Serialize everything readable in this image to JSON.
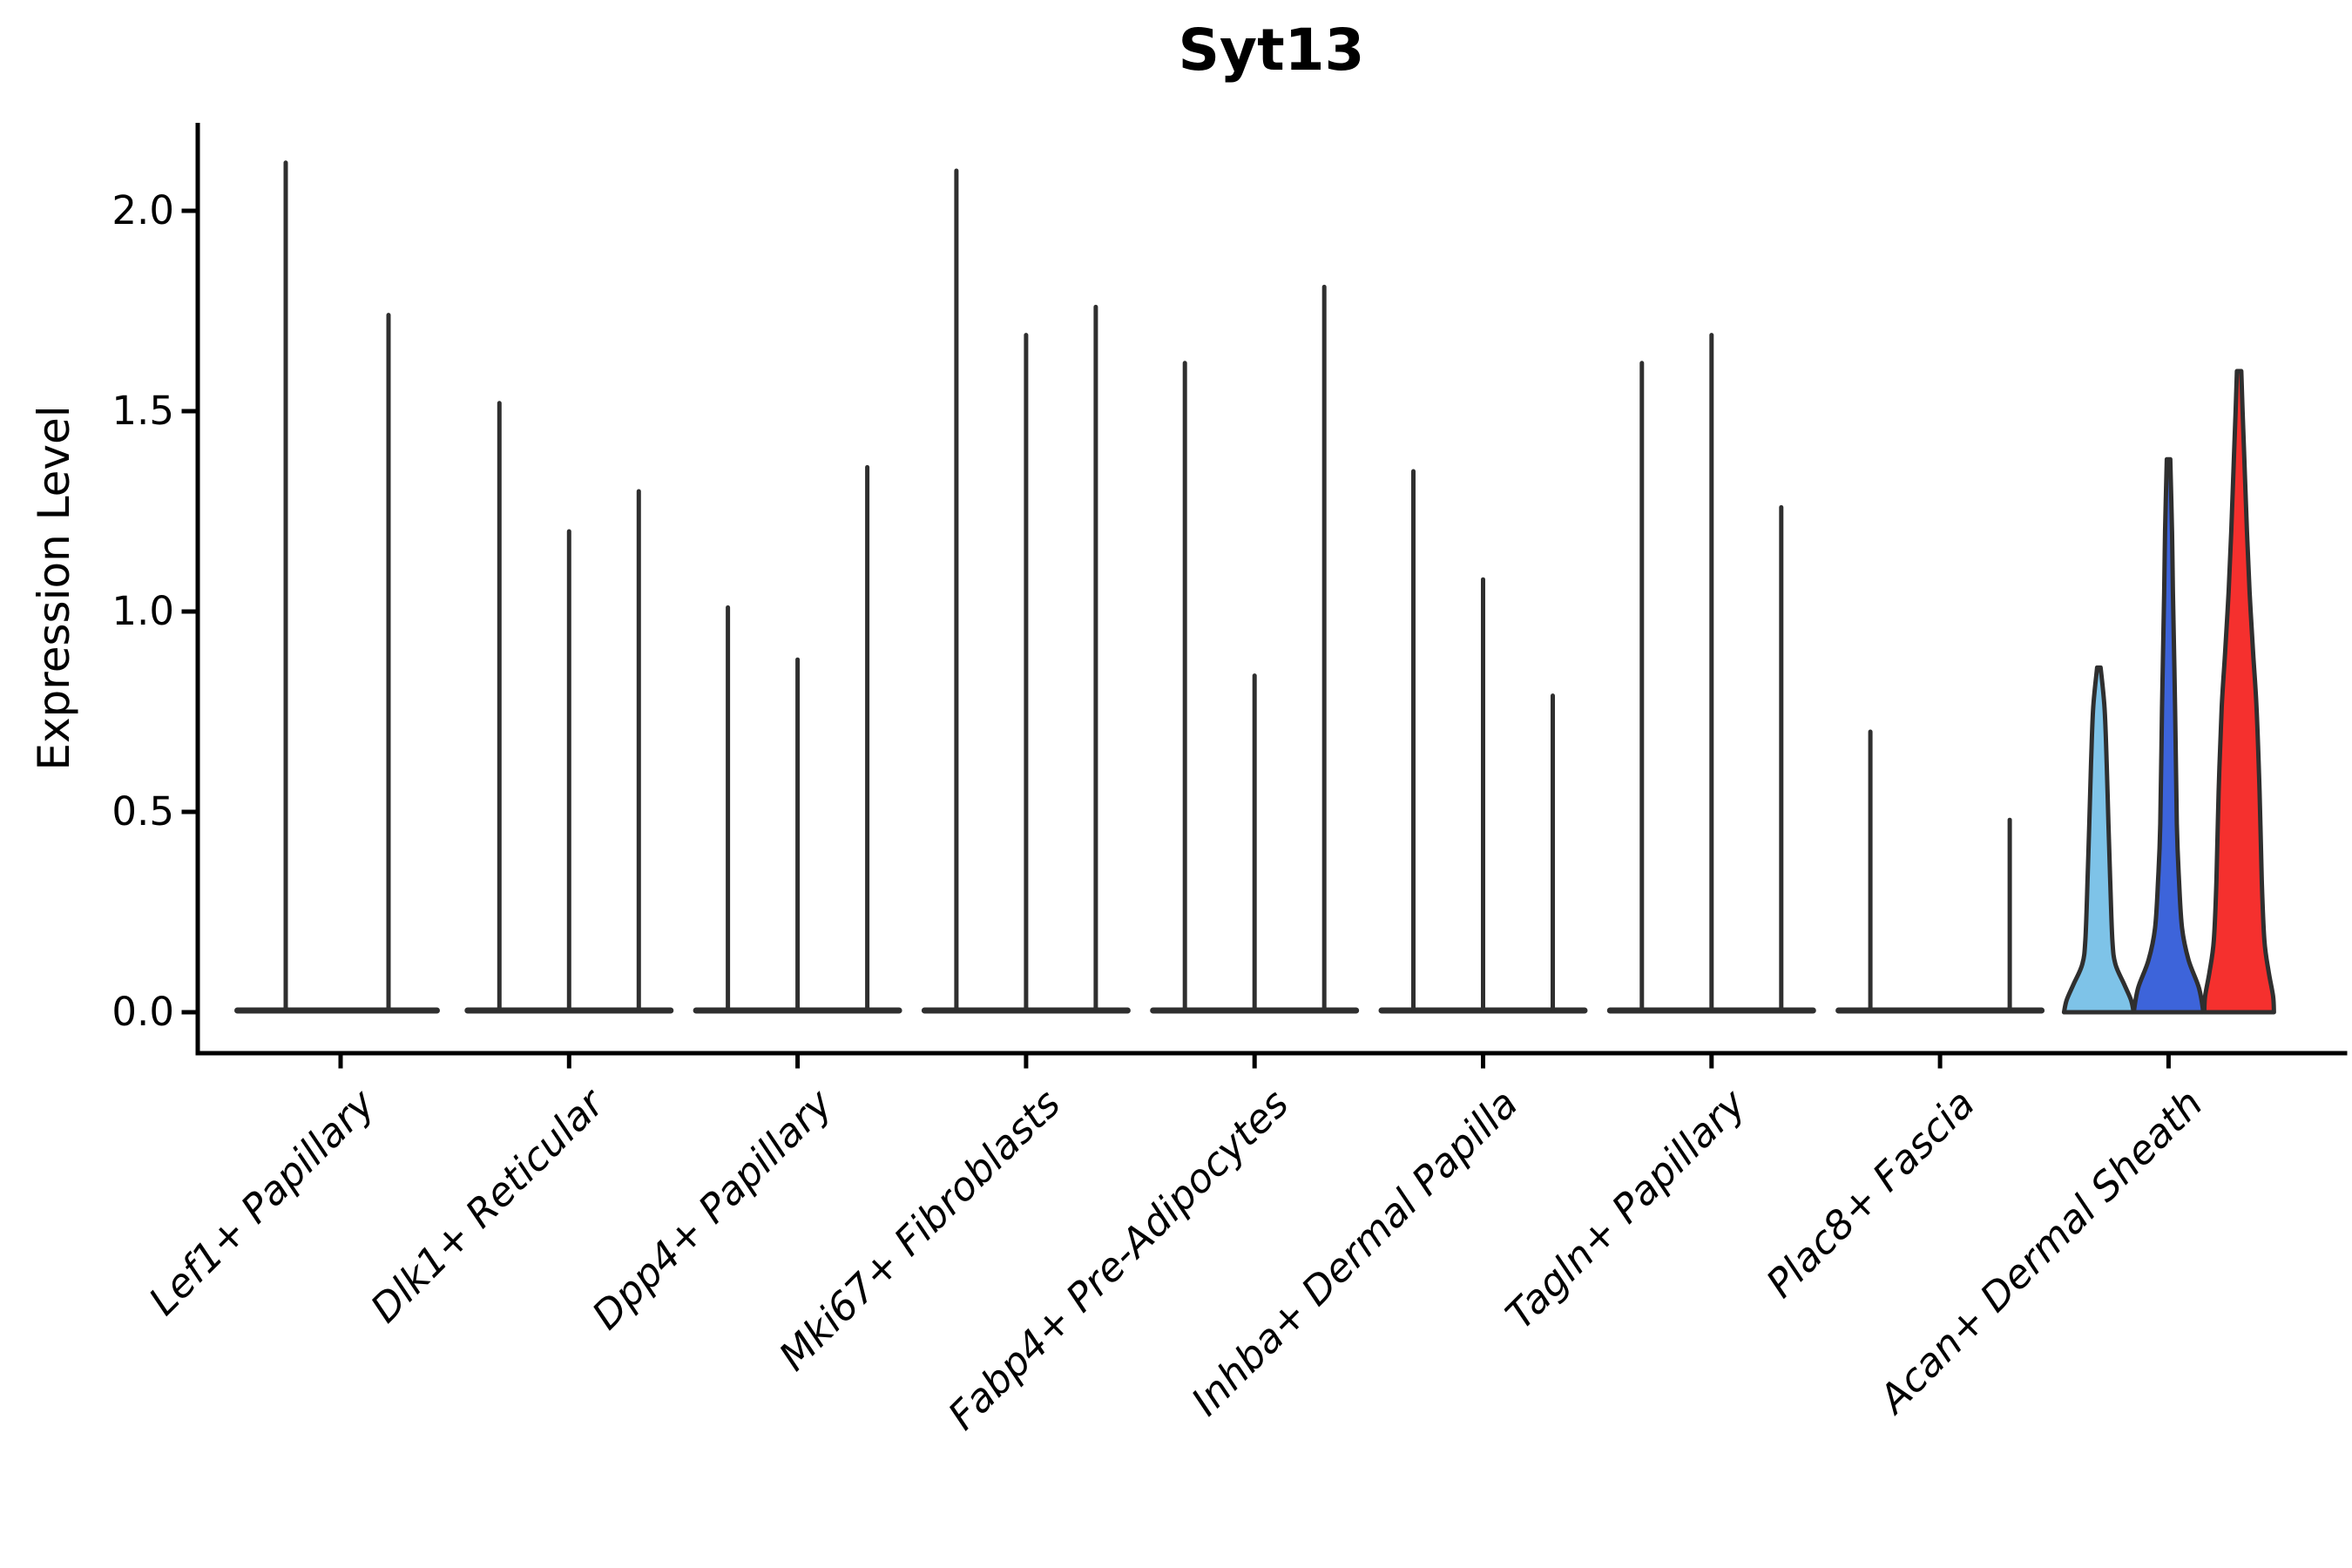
{
  "chart_data": {
    "type": "violin",
    "title": "Syt13",
    "ylabel": "Expression Level",
    "xlabel": "",
    "grid": false,
    "legend": "none",
    "ylim": [
      -0.09,
      2.22
    ],
    "ytick_values": [
      0.0,
      0.5,
      1.0,
      1.5,
      2.0
    ],
    "ytick_labels": [
      "0.0",
      "0.5",
      "1.0",
      "1.5",
      "2.0"
    ],
    "colors": {
      "violin_edge": "#2f2f2f",
      "axis": "#000000",
      "highlight_lightblue": "#7EC3E8",
      "highlight_blue": "#3D64DA",
      "highlight_red": "#F5302E"
    },
    "categories": [
      {
        "label": "Lef1+ Papillary",
        "violins": [
          {
            "offset": -63,
            "half_width": 59,
            "max": 2.12,
            "fill": null
          },
          {
            "offset": 55,
            "half_width": 59,
            "max": 1.74,
            "fill": null
          }
        ]
      },
      {
        "label": "Dlk1+ Reticular",
        "violins": [
          {
            "offset": -80,
            "half_width": 40,
            "max": 1.52,
            "fill": null
          },
          {
            "offset": 0,
            "half_width": 40,
            "max": 1.2,
            "fill": null
          },
          {
            "offset": 80,
            "half_width": 40,
            "max": 1.3,
            "fill": null
          }
        ]
      },
      {
        "label": "Dpp4+ Papillary",
        "violins": [
          {
            "offset": -80,
            "half_width": 40,
            "max": 1.01,
            "fill": null
          },
          {
            "offset": 0,
            "half_width": 40,
            "max": 0.88,
            "fill": null
          },
          {
            "offset": 80,
            "half_width": 40,
            "max": 1.36,
            "fill": null
          }
        ]
      },
      {
        "label": "Mki67+ Fibroblasts",
        "violins": [
          {
            "offset": -80,
            "half_width": 40,
            "max": 2.1,
            "fill": null
          },
          {
            "offset": 0,
            "half_width": 40,
            "max": 1.69,
            "fill": null
          },
          {
            "offset": 80,
            "half_width": 40,
            "max": 1.76,
            "fill": null
          }
        ]
      },
      {
        "label": "Fabp4+ Pre-Adipocytes",
        "violins": [
          {
            "offset": -80,
            "half_width": 40,
            "max": 1.62,
            "fill": null
          },
          {
            "offset": 0,
            "half_width": 40,
            "max": 0.84,
            "fill": null
          },
          {
            "offset": 80,
            "half_width": 40,
            "max": 1.81,
            "fill": null
          }
        ]
      },
      {
        "label": "Inhba+ Dermal Papilla",
        "violins": [
          {
            "offset": -80,
            "half_width": 40,
            "max": 1.35,
            "fill": null
          },
          {
            "offset": 0,
            "half_width": 40,
            "max": 1.08,
            "fill": null
          },
          {
            "offset": 80,
            "half_width": 40,
            "max": 0.79,
            "fill": null
          }
        ]
      },
      {
        "label": "Tagln+ Papillary",
        "violins": [
          {
            "offset": -80,
            "half_width": 40,
            "max": 1.62,
            "fill": null
          },
          {
            "offset": 0,
            "half_width": 40,
            "max": 1.69,
            "fill": null
          },
          {
            "offset": 80,
            "half_width": 40,
            "max": 1.26,
            "fill": null
          }
        ]
      },
      {
        "label": "Plac8+ Fascia",
        "violins": [
          {
            "offset": -80,
            "half_width": 40,
            "max": 0.7,
            "fill": null
          },
          {
            "offset": 80,
            "half_width": 40,
            "max": 0.48,
            "fill": null
          }
        ],
        "body_span": [
          -120,
          120
        ]
      },
      {
        "label": "Acan+ Dermal Sheath",
        "violins": [
          {
            "offset": -80,
            "half_width": 40,
            "max": 0.86,
            "fill": "#7EC3E8",
            "profile": [
              [
                0.86,
                2
              ],
              [
                0.76,
                6.5
              ],
              [
                0.62,
                9
              ],
              [
                0.47,
                11
              ],
              [
                0.33,
                13
              ],
              [
                0.18,
                15.5
              ],
              [
                0.12,
                19
              ],
              [
                0.07,
                29
              ],
              [
                0.03,
                37
              ],
              [
                0,
                40
              ]
            ]
          },
          {
            "offset": 0,
            "half_width": 40,
            "max": 1.38,
            "fill": "#3D64DA",
            "profile": [
              [
                1.38,
                2
              ],
              [
                1.2,
                4
              ],
              [
                1.05,
                5
              ],
              [
                0.76,
                7.5
              ],
              [
                0.47,
                9.5
              ],
              [
                0.33,
                12
              ],
              [
                0.21,
                15.5
              ],
              [
                0.13,
                23
              ],
              [
                0.06,
                35
              ],
              [
                0,
                40
              ]
            ]
          },
          {
            "offset": 81,
            "half_width": 40,
            "max": 1.6,
            "fill": "#F5302E",
            "profile": [
              [
                1.6,
                2.5
              ],
              [
                1.5,
                4
              ],
              [
                1.35,
                6.5
              ],
              [
                1.2,
                9
              ],
              [
                1.05,
                12
              ],
              [
                0.9,
                16
              ],
              [
                0.76,
                20
              ],
              [
                0.55,
                23.5
              ],
              [
                0.33,
                26
              ],
              [
                0.18,
                29
              ],
              [
                0.1,
                34
              ],
              [
                0.04,
                39
              ],
              [
                0,
                40
              ]
            ]
          }
        ]
      }
    ]
  }
}
